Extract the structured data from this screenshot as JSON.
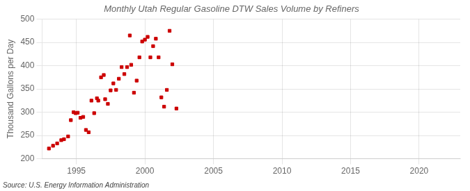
{
  "chart_data": {
    "type": "scatter",
    "title": "Monthly Utah Regular Gasoline DTW Sales Volume by Refiners",
    "ylabel": "Thousand Gallons per Day",
    "annotation": "Source: U.S. Energy Information Administration",
    "x": [
      1993.0,
      1993.3,
      1993.6,
      1993.9,
      1994.1,
      1994.4,
      1994.6,
      1994.8,
      1994.95,
      1995.1,
      1995.3,
      1995.5,
      1995.7,
      1995.9,
      1996.1,
      1996.3,
      1996.5,
      1996.6,
      1996.8,
      1997.0,
      1997.1,
      1997.3,
      1997.5,
      1997.7,
      1997.9,
      1998.1,
      1998.3,
      1998.5,
      1998.7,
      1998.9,
      1999.0,
      1999.2,
      1999.4,
      1999.6,
      1999.8,
      2000.0,
      2000.2,
      2000.4,
      2000.6,
      2000.8,
      2001.0,
      2001.2,
      2001.4,
      2001.6,
      2001.8,
      2002.0,
      2002.3
    ],
    "values": [
      222,
      228,
      233,
      240,
      242,
      248,
      283,
      300,
      298,
      299,
      288,
      290,
      262,
      257,
      325,
      298,
      330,
      325,
      375,
      380,
      328,
      318,
      347,
      362,
      348,
      372,
      397,
      382,
      397,
      465,
      402,
      342,
      368,
      418,
      452,
      456,
      462,
      418,
      442,
      458,
      418,
      332,
      312,
      348,
      475,
      403,
      308
    ],
    "color": "#cc0000",
    "marker": "square",
    "xlim": [
      1992.5,
      2023
    ],
    "ylim": [
      200,
      500
    ],
    "xticks": [
      1995,
      2000,
      2005,
      2010,
      2015,
      2020
    ],
    "yticks": [
      200,
      250,
      300,
      350,
      400,
      450,
      500
    ],
    "grid": true
  }
}
